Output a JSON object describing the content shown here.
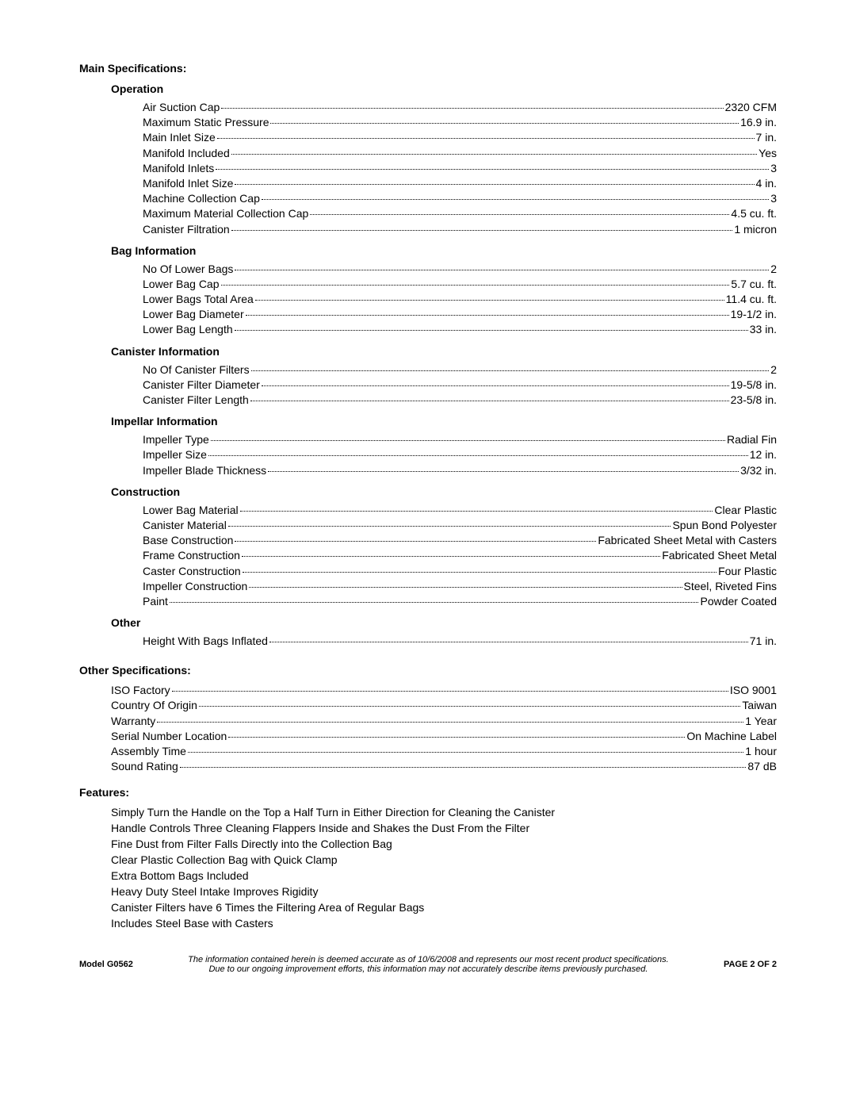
{
  "headings": {
    "main_specs": "Main Specifications:",
    "other_specs": "Other Specifications:",
    "features": "Features:"
  },
  "sections": {
    "operation": {
      "title": "Operation",
      "items": [
        {
          "label": "Air Suction Cap",
          "value": "2320 CFM"
        },
        {
          "label": "Maximum Static Pressure",
          "value": "16.9 in."
        },
        {
          "label": "Main Inlet Size",
          "value": "7 in."
        },
        {
          "label": "Manifold Included",
          "value": "Yes"
        },
        {
          "label": "Manifold Inlets",
          "value": "3"
        },
        {
          "label": "Manifold Inlet Size",
          "value": "4 in."
        },
        {
          "label": "Machine Collection Cap",
          "value": "3"
        },
        {
          "label": "Maximum Material Collection Cap",
          "value": "4.5 cu. ft."
        },
        {
          "label": "Canister Filtration",
          "value": "1 micron"
        }
      ]
    },
    "bag": {
      "title": "Bag Information",
      "items": [
        {
          "label": "No Of Lower Bags",
          "value": "2"
        },
        {
          "label": "Lower Bag Cap",
          "value": "5.7 cu. ft."
        },
        {
          "label": "Lower Bags Total Area",
          "value": "11.4 cu. ft."
        },
        {
          "label": "Lower Bag Diameter",
          "value": "19-1/2 in."
        },
        {
          "label": "Lower Bag Length",
          "value": "33 in."
        }
      ]
    },
    "canister": {
      "title": "Canister Information",
      "items": [
        {
          "label": "No Of Canister Filters",
          "value": "2"
        },
        {
          "label": "Canister Filter Diameter",
          "value": "19-5/8 in."
        },
        {
          "label": "Canister Filter Length",
          "value": "23-5/8 in."
        }
      ]
    },
    "impellar": {
      "title": "Impellar Information",
      "items": [
        {
          "label": "Impeller Type",
          "value": "Radial Fin"
        },
        {
          "label": "Impeller Size",
          "value": "12 in."
        },
        {
          "label": "Impeller Blade Thickness",
          "value": "3/32 in."
        }
      ]
    },
    "construction": {
      "title": "Construction",
      "items": [
        {
          "label": "Lower Bag Material",
          "value": "Clear Plastic"
        },
        {
          "label": "Canister Material",
          "value": "Spun Bond Polyester"
        },
        {
          "label": "Base Construction",
          "value": "Fabricated Sheet Metal with Casters"
        },
        {
          "label": "Frame Construction",
          "value": "Fabricated Sheet Metal"
        },
        {
          "label": "Caster Construction",
          "value": "Four Plastic"
        },
        {
          "label": "Impeller Construction",
          "value": "Steel, Riveted Fins"
        },
        {
          "label": "Paint",
          "value": "Powder Coated"
        }
      ]
    },
    "other": {
      "title": "Other",
      "items": [
        {
          "label": "Height With Bags Inflated",
          "value": "71 in."
        }
      ]
    }
  },
  "other_specs": [
    {
      "label": "ISO Factory ",
      "value": "ISO 9001"
    },
    {
      "label": "Country Of Origin ",
      "value": "Taiwan"
    },
    {
      "label": "Warranty ",
      "value": "1 Year"
    },
    {
      "label": "Serial Number Location ",
      "value": "On Machine Label"
    },
    {
      "label": "Assembly Time ",
      "value": "1 hour"
    },
    {
      "label": "Sound Rating ",
      "value": "87 dB"
    }
  ],
  "features": [
    "Simply Turn the Handle on the Top a Half Turn in Either Direction for Cleaning the Canister",
    "Handle Controls Three Cleaning Flappers Inside and Shakes the Dust From the Filter",
    "Fine Dust from Filter Falls Directly into the Collection Bag",
    "Clear Plastic Collection Bag with Quick Clamp",
    "Extra Bottom Bags Included",
    "Heavy Duty Steel Intake Improves Rigidity",
    "Canister Filters have 6 Times the Filtering Area of Regular Bags",
    "Includes Steel Base with Casters"
  ],
  "footer": {
    "model": "Model G0562",
    "disclaimer_line1": "The information contained herein is deemed accurate as of 10/6/2008 and represents our most recent product specifications.",
    "disclaimer_line2": "Due to our ongoing improvement efforts, this information may not accurately describe items previously purchased.",
    "page": "PAGE 2 OF 2"
  }
}
